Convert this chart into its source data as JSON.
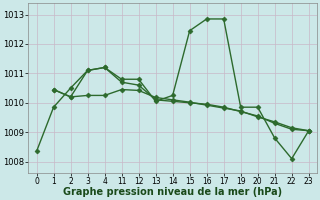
{
  "background_color": "#cce8e8",
  "line_color": "#2d6a2d",
  "marker": "D",
  "markersize": 2.5,
  "linewidth": 1.0,
  "xlabel": "Graphe pression niveau de la mer (hPa)",
  "xlabel_fontsize": 7.0,
  "ylabel_fontsize": 6.0,
  "tick_fontsize": 5.5,
  "yticks": [
    1008,
    1009,
    1010,
    1011,
    1012,
    1013
  ],
  "ylim": [
    1007.6,
    1013.4
  ],
  "xtick_labels": [
    "0",
    "1",
    "2",
    "3",
    "4",
    "11",
    "12",
    "13",
    "14",
    "15",
    "16",
    "17",
    "19",
    "20",
    "21",
    "22",
    "23"
  ],
  "line1_x": [
    0,
    1,
    2,
    3,
    4,
    5,
    6,
    7,
    8,
    9,
    10,
    11,
    12,
    13,
    14,
    15,
    16
  ],
  "line1_y": [
    1008.35,
    1009.85,
    1010.5,
    1011.1,
    1011.2,
    1010.8,
    1010.8,
    1010.05,
    1010.25,
    1012.45,
    1012.85,
    1012.85,
    1009.85,
    1009.85,
    1008.8,
    1008.1,
    1009.05
  ],
  "line2_x": [
    1,
    2,
    3,
    4,
    5,
    6,
    7,
    8,
    9,
    10,
    11,
    12,
    13,
    14,
    15,
    16
  ],
  "line2_y": [
    1010.45,
    1010.2,
    1011.1,
    1011.2,
    1010.7,
    1010.6,
    1010.1,
    1010.05,
    1010.0,
    1009.95,
    1009.85,
    1009.7,
    1009.55,
    1009.3,
    1009.1,
    1009.05
  ],
  "line3_x": [
    1,
    2,
    3,
    4,
    5,
    6,
    7,
    8,
    9,
    10,
    11,
    12,
    13,
    14,
    15,
    16
  ],
  "line3_y": [
    1010.45,
    1010.2,
    1010.25,
    1010.25,
    1010.45,
    1010.42,
    1010.18,
    1010.1,
    1010.02,
    1009.92,
    1009.82,
    1009.72,
    1009.52,
    1009.35,
    1009.15,
    1009.05
  ]
}
